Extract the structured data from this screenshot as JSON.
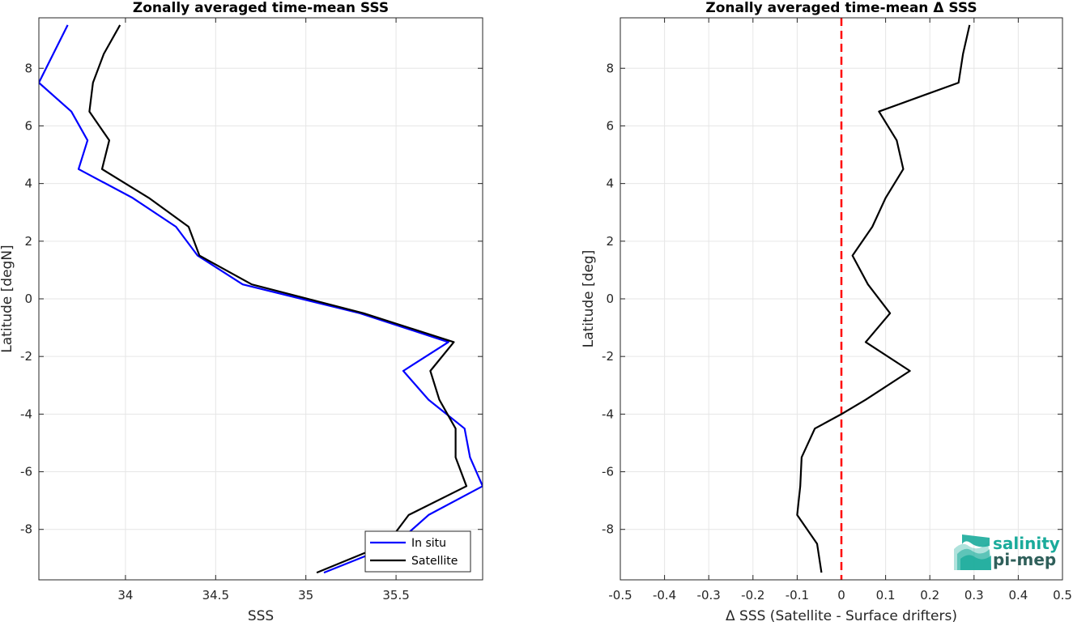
{
  "chart_data": [
    {
      "type": "line",
      "title": "Zonally averaged time-mean SSS",
      "xlabel": "SSS",
      "ylabel": "Latitude [degN]",
      "xlim": [
        33.52,
        35.98
      ],
      "ylim": [
        -9.75,
        9.75
      ],
      "x_ticks": [
        "34",
        "34.5",
        "35",
        "35.5"
      ],
      "y_ticks": [
        "-8",
        "-6",
        "-4",
        "-2",
        "0",
        "2",
        "4",
        "6",
        "8"
      ],
      "grid": true,
      "legend": "bottom-right",
      "series": [
        {
          "name": "In situ",
          "color": "#0000ff",
          "points": [
            [
              35.1,
              -9.5
            ],
            [
              35.5,
              -8.5
            ],
            [
              35.68,
              -7.5
            ],
            [
              35.98,
              -6.5
            ],
            [
              35.91,
              -5.5
            ],
            [
              35.88,
              -4.5
            ],
            [
              35.68,
              -3.5
            ],
            [
              35.54,
              -2.5
            ],
            [
              35.79,
              -1.5
            ],
            [
              35.3,
              -0.5
            ],
            [
              34.65,
              0.5
            ],
            [
              34.4,
              1.5
            ],
            [
              34.28,
              2.5
            ],
            [
              34.04,
              3.5
            ],
            [
              33.74,
              4.5
            ],
            [
              33.79,
              5.5
            ],
            [
              33.7,
              6.5
            ],
            [
              33.52,
              7.5
            ],
            [
              33.6,
              8.5
            ],
            [
              33.68,
              9.5
            ]
          ]
        },
        {
          "name": "Satellite",
          "color": "#000000",
          "points": [
            [
              35.06,
              -9.5
            ],
            [
              35.45,
              -8.5
            ],
            [
              35.57,
              -7.5
            ],
            [
              35.89,
              -6.5
            ],
            [
              35.83,
              -5.5
            ],
            [
              35.83,
              -4.5
            ],
            [
              35.74,
              -3.5
            ],
            [
              35.69,
              -2.5
            ],
            [
              35.82,
              -1.5
            ],
            [
              35.32,
              -0.5
            ],
            [
              34.7,
              0.5
            ],
            [
              34.41,
              1.5
            ],
            [
              34.35,
              2.5
            ],
            [
              34.13,
              3.5
            ],
            [
              33.87,
              4.5
            ],
            [
              33.91,
              5.5
            ],
            [
              33.8,
              6.5
            ],
            [
              33.82,
              7.5
            ],
            [
              33.88,
              8.5
            ],
            [
              33.97,
              9.5
            ]
          ]
        }
      ]
    },
    {
      "type": "line",
      "title": "Zonally averaged time-mean Δ SSS",
      "xlabel": "Δ SSS (Satellite - Surface drifters)",
      "ylabel": "Latitude [deg]",
      "xlim": [
        -0.5,
        0.5
      ],
      "ylim": [
        -9.75,
        9.75
      ],
      "x_ticks": [
        "-0.5",
        "-0.4",
        "-0.3",
        "-0.2",
        "-0.1",
        "0",
        "0.1",
        "0.2",
        "0.3",
        "0.4",
        "0.5"
      ],
      "y_ticks": [
        "-8",
        "-6",
        "-4",
        "-2",
        "0",
        "2",
        "4",
        "6",
        "8"
      ],
      "grid": true,
      "reference_line": {
        "x": 0,
        "color": "#ff0000",
        "style": "dashed"
      },
      "series": [
        {
          "name": "",
          "color": "#000000",
          "points": [
            [
              -0.045,
              -9.5
            ],
            [
              -0.055,
              -8.5
            ],
            [
              -0.1,
              -7.5
            ],
            [
              -0.093,
              -6.5
            ],
            [
              -0.09,
              -5.5
            ],
            [
              -0.06,
              -4.5
            ],
            [
              0.0,
              -4.0
            ],
            [
              0.055,
              -3.5
            ],
            [
              0.155,
              -2.5
            ],
            [
              0.055,
              -1.5
            ],
            [
              0.11,
              -0.5
            ],
            [
              0.06,
              0.5
            ],
            [
              0.025,
              1.5
            ],
            [
              0.07,
              2.5
            ],
            [
              0.1,
              3.5
            ],
            [
              0.14,
              4.5
            ],
            [
              0.125,
              5.5
            ],
            [
              0.085,
              6.5
            ],
            [
              0.265,
              7.5
            ],
            [
              0.275,
              8.5
            ],
            [
              0.29,
              9.5
            ]
          ]
        }
      ]
    }
  ],
  "logo": {
    "line1": "salinity",
    "line2": "pi-mep",
    "color": "#1aab9b"
  }
}
